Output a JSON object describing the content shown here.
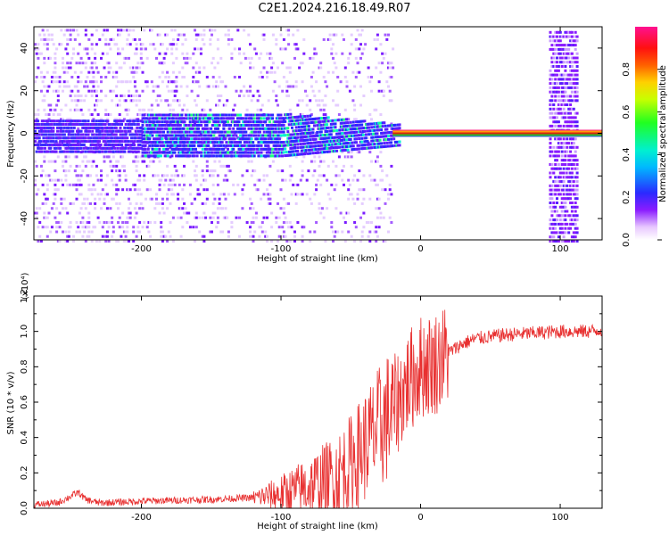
{
  "title": "C2E1.2024.216.18.49.R07",
  "colors": {
    "snr_line": "#e83030",
    "spectrogram_base": "#7a1cff",
    "carrier": "#e02020"
  },
  "chart_data": [
    {
      "type": "heatmap",
      "xlabel": "Height of straight line (km)",
      "ylabel": "Frequency (Hz)",
      "xlim": [
        -277,
        130
      ],
      "ylim": [
        -50,
        50
      ],
      "xticks": [
        -200,
        -100,
        0,
        100
      ],
      "xtick_labels": [
        "-200",
        "-100",
        "0",
        "100"
      ],
      "yticks": [
        -40,
        -20,
        0,
        20,
        40
      ],
      "ytick_labels": [
        "-40",
        "-20",
        "0",
        "20",
        "40"
      ],
      "colorbar": {
        "label": "Normalized spectral amplitude",
        "range": [
          0,
          1
        ],
        "ticks": [
          0.0,
          0.2,
          0.4,
          0.6,
          0.8
        ],
        "tick_labels": [
          "0.0",
          "0.2",
          "0.4",
          "0.6",
          "0.8"
        ],
        "colormap": "rainbow (white, violet, blue, cyan, green, yellow, red, magenta)"
      },
      "features": {
        "carrier_line_frequency_hz": 0,
        "carrier_line_x_range": [
          -20,
          130
        ],
        "occultation_band_x_range": [
          92,
          112
        ],
        "noise_band_x_range": [
          -277,
          -20
        ]
      }
    },
    {
      "type": "line",
      "xlabel": "Height of straight line (km)",
      "ylabel": "SNR (10 * v/v)",
      "y_multiplier": "(x10⁴)",
      "xlim": [
        -277,
        130
      ],
      "ylim": [
        0,
        1.2
      ],
      "xticks": [
        -200,
        -100,
        0,
        100
      ],
      "xtick_labels": [
        "-200",
        "-100",
        "0",
        "100"
      ],
      "yticks": [
        0.0,
        0.2,
        0.4,
        0.6,
        0.8,
        1.0,
        1.2
      ],
      "ytick_labels": [
        "0.0",
        "0.2",
        "0.4",
        "0.6",
        "0.8",
        "1.0",
        "1.2"
      ],
      "series": [
        {
          "x": [
            -277,
            -260,
            -245,
            -240,
            -230,
            -200,
            -150,
            -120,
            -100,
            -80,
            -60,
            -50,
            -40,
            -30,
            -20,
            -10,
            0,
            10,
            20,
            30,
            40,
            60,
            80,
            100,
            120,
            130
          ],
          "y": [
            0.02,
            0.03,
            0.09,
            0.05,
            0.03,
            0.04,
            0.05,
            0.06,
            0.08,
            0.12,
            0.18,
            0.25,
            0.35,
            0.45,
            0.55,
            0.7,
            0.8,
            0.82,
            0.88,
            0.93,
            0.96,
            0.98,
            0.99,
            1.0,
            1.0,
            1.01
          ]
        }
      ]
    }
  ]
}
